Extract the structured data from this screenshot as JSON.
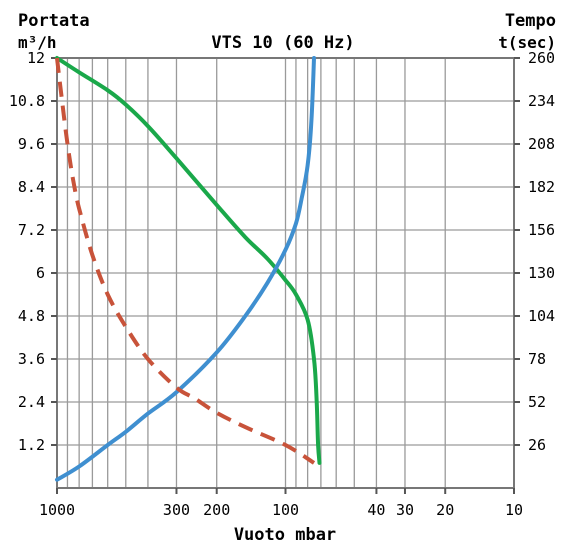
{
  "chart_data": {
    "type": "line",
    "title": "VTS 10 (60 Hz)",
    "left_axis": {
      "label_line1": "Portata",
      "label_line2": "m³/h",
      "min": 0,
      "max": 12
    },
    "right_axis": {
      "label_line1": "Tempo",
      "label_line2": "t(sec)",
      "min": 0,
      "max": 260
    },
    "x_axis": {
      "label": "Vuoto mbar",
      "scale": "log",
      "reversed": true,
      "min": 10,
      "max": 1000,
      "tick_labels": [
        {
          "value": 1000,
          "text": "1000"
        },
        {
          "value": 300,
          "text": "300"
        },
        {
          "value": 200,
          "text": "200"
        },
        {
          "value": 100,
          "text": "100"
        },
        {
          "value": 40,
          "text": "40"
        },
        {
          "value": 30,
          "text": "30"
        },
        {
          "value": 20,
          "text": "20"
        },
        {
          "value": 10,
          "text": "10"
        }
      ],
      "grid_values": [
        1000,
        900,
        800,
        700,
        600,
        500,
        400,
        300,
        200,
        100,
        90,
        80,
        70,
        60,
        50,
        40,
        30,
        20,
        10
      ]
    },
    "left_ticks": [
      {
        "value": 12,
        "text": "12"
      },
      {
        "value": 10.8,
        "text": "10.8"
      },
      {
        "value": 9.6,
        "text": "9.6"
      },
      {
        "value": 8.4,
        "text": "8.4"
      },
      {
        "value": 7.2,
        "text": "7.2"
      },
      {
        "value": 6,
        "text": "6"
      },
      {
        "value": 4.8,
        "text": "4.8"
      },
      {
        "value": 3.6,
        "text": "3.6"
      },
      {
        "value": 2.4,
        "text": "2.4"
      },
      {
        "value": 1.2,
        "text": "1.2"
      }
    ],
    "right_ticks": [
      {
        "value": 260,
        "text": "260"
      },
      {
        "value": 234,
        "text": "234"
      },
      {
        "value": 208,
        "text": "208"
      },
      {
        "value": 182,
        "text": "182"
      },
      {
        "value": 156,
        "text": "156"
      },
      {
        "value": 130,
        "text": "130"
      },
      {
        "value": 104,
        "text": "104"
      },
      {
        "value": 78,
        "text": "78"
      },
      {
        "value": 52,
        "text": "52"
      },
      {
        "value": 26,
        "text": "26"
      }
    ],
    "grid": true,
    "series": [
      {
        "id": "portata-green",
        "axis": "left",
        "color": "#1aa84a",
        "dash": "solid",
        "points": [
          [
            1000,
            12
          ],
          [
            800,
            11.6
          ],
          [
            600,
            11.1
          ],
          [
            500,
            10.7
          ],
          [
            400,
            10.1
          ],
          [
            300,
            9.2
          ],
          [
            200,
            7.9
          ],
          [
            150,
            7.0
          ],
          [
            120,
            6.4
          ],
          [
            100,
            5.8
          ],
          [
            90,
            5.4
          ],
          [
            80,
            4.7
          ],
          [
            75,
            3.6
          ],
          [
            73,
            2.4
          ],
          [
            72,
            1.2
          ],
          [
            71,
            0.7
          ]
        ]
      },
      {
        "id": "tempo-blue",
        "axis": "right",
        "color": "#3f8fd0",
        "dash": "solid",
        "points": [
          [
            1000,
            5
          ],
          [
            800,
            13
          ],
          [
            600,
            26
          ],
          [
            500,
            34
          ],
          [
            400,
            45
          ],
          [
            300,
            58
          ],
          [
            200,
            82
          ],
          [
            150,
            104
          ],
          [
            120,
            124
          ],
          [
            100,
            144
          ],
          [
            90,
            160
          ],
          [
            85,
            175
          ],
          [
            80,
            195
          ],
          [
            77,
            222
          ],
          [
            75,
            260
          ]
        ]
      },
      {
        "id": "portata-red-dashed",
        "axis": "left",
        "color": "#c8533a",
        "dash": "dashed",
        "points": [
          [
            1000,
            12
          ],
          [
            950,
            10.8
          ],
          [
            900,
            9.6
          ],
          [
            850,
            8.6
          ],
          [
            800,
            7.8
          ],
          [
            700,
            6.5
          ],
          [
            600,
            5.4
          ],
          [
            500,
            4.5
          ],
          [
            400,
            3.6
          ],
          [
            300,
            2.8
          ],
          [
            250,
            2.5
          ],
          [
            200,
            2.1
          ],
          [
            150,
            1.7
          ],
          [
            100,
            1.2
          ],
          [
            75,
            0.7
          ]
        ]
      }
    ]
  }
}
